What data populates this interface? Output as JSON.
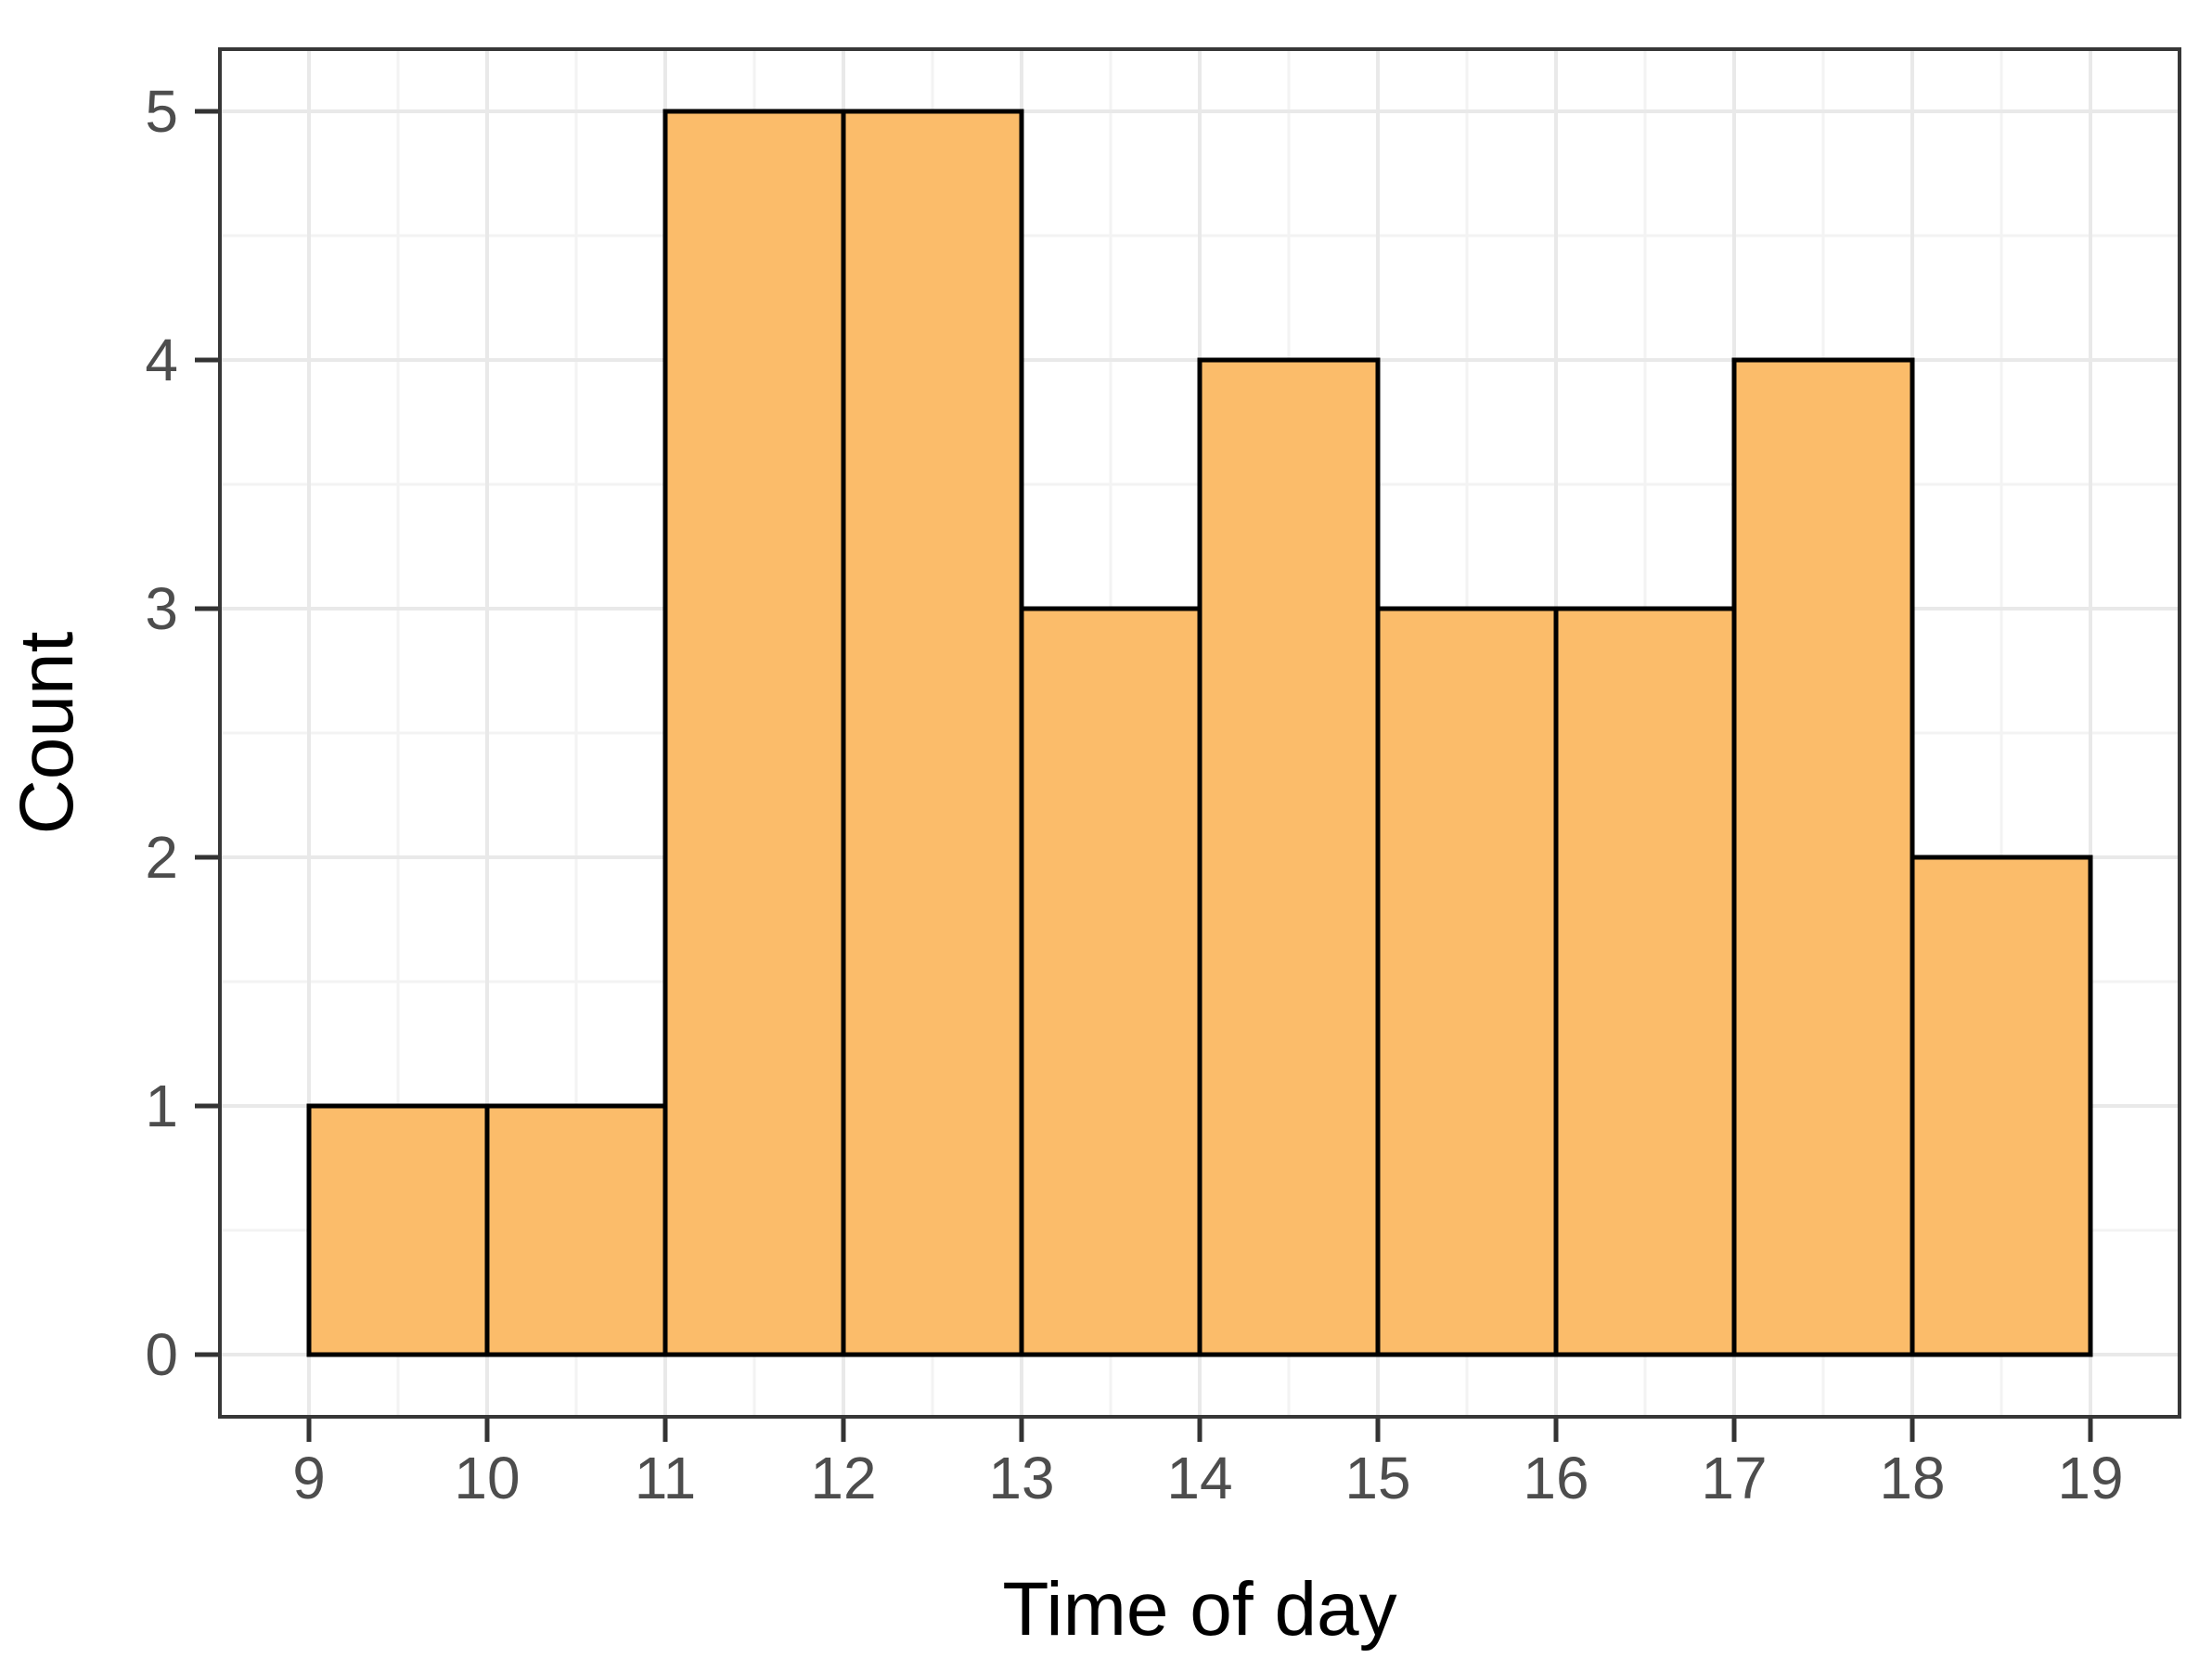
{
  "chart_data": {
    "type": "bar",
    "subtype": "histogram",
    "title": "",
    "xlabel": "Time of day",
    "ylabel": "Count",
    "bin_edges": [
      9,
      10,
      11,
      12,
      13,
      14,
      15,
      16,
      17,
      18,
      19
    ],
    "counts": [
      1,
      1,
      5,
      5,
      3,
      4,
      3,
      3,
      4,
      2
    ],
    "bins": [
      {
        "range": [
          9,
          10
        ],
        "count": 1
      },
      {
        "range": [
          10,
          11
        ],
        "count": 1
      },
      {
        "range": [
          11,
          12
        ],
        "count": 5
      },
      {
        "range": [
          12,
          13
        ],
        "count": 5
      },
      {
        "range": [
          13,
          14
        ],
        "count": 3
      },
      {
        "range": [
          14,
          15
        ],
        "count": 4
      },
      {
        "range": [
          15,
          16
        ],
        "count": 3
      },
      {
        "range": [
          16,
          17
        ],
        "count": 3
      },
      {
        "range": [
          17,
          18
        ],
        "count": 4
      },
      {
        "range": [
          18,
          19
        ],
        "count": 2
      }
    ],
    "x_ticks": [
      9,
      10,
      11,
      12,
      13,
      14,
      15,
      16,
      17,
      18,
      19
    ],
    "y_ticks": [
      0,
      1,
      2,
      3,
      4,
      5
    ],
    "xlim": [
      8.5,
      19.5
    ],
    "ylim": [
      -0.25,
      5.25
    ],
    "grid": "major-and-minor",
    "minor_grid_step": 0.5,
    "legend": "none",
    "colors": {
      "bar_fill": "#FBBC6A",
      "bar_stroke": "#000000",
      "grid_major": "#E9E9E9",
      "grid_minor": "#F3F3F3",
      "panel_border": "#373737",
      "tick_mark": "#333333",
      "tick_label": "#4D4D4D",
      "axis_title": "#000000",
      "panel_background": "#FFFFFF"
    }
  }
}
